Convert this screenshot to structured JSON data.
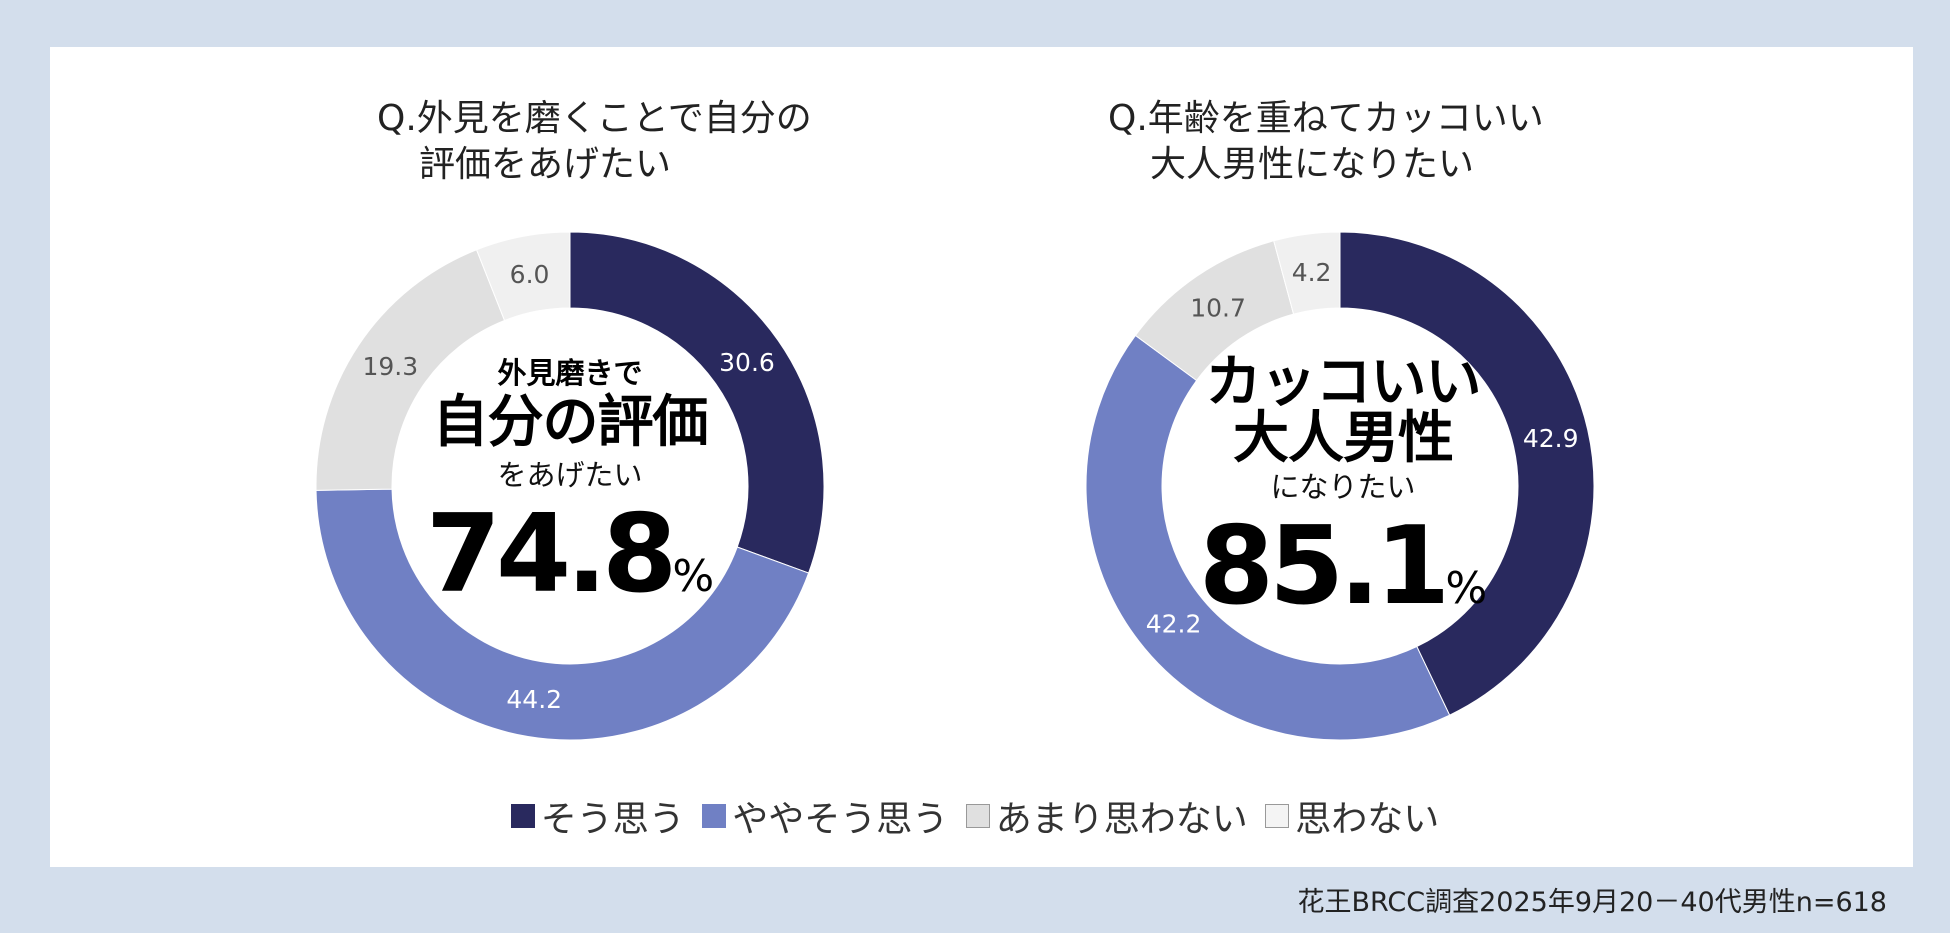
{
  "colors": {
    "background": "#d3deec",
    "panel": "#ffffff",
    "series": [
      "#29295e",
      "#7080c4",
      "#e0e0e0",
      "#f0f0f0"
    ]
  },
  "legend": [
    "そう思う",
    "ややそう思う",
    "あまり思わない",
    "思わない"
  ],
  "footer": "花王BRCC調査2025年9月20－40代男性n=618",
  "chart_data": [
    {
      "type": "donut",
      "title_lines": [
        "Q.外見を磨くことで自分の",
        "評価をあげたい"
      ],
      "categories": [
        "そう思う",
        "ややそう思う",
        "あまり思わない",
        "思わない"
      ],
      "values": [
        30.6,
        44.2,
        19.3,
        6.0
      ],
      "labels": [
        "30.6",
        "44.2",
        "19.3",
        "6.0"
      ],
      "center": {
        "line1": "外見磨きで",
        "line2": "自分の評価",
        "line3": "をあげたい",
        "value": "74.8",
        "unit": "%"
      }
    },
    {
      "type": "donut",
      "title_lines": [
        "Q.年齢を重ねてカッコいい",
        "大人男性になりたい"
      ],
      "categories": [
        "そう思う",
        "ややそう思う",
        "あまり思わない",
        "思わない"
      ],
      "values": [
        42.9,
        42.2,
        10.7,
        4.2
      ],
      "labels": [
        "42.9",
        "42.2",
        "10.7",
        "4.2"
      ],
      "center": {
        "line1": "カッコいい",
        "line2": "大人男性",
        "line3": "になりたい",
        "value": "85.1",
        "unit": "%"
      }
    }
  ]
}
